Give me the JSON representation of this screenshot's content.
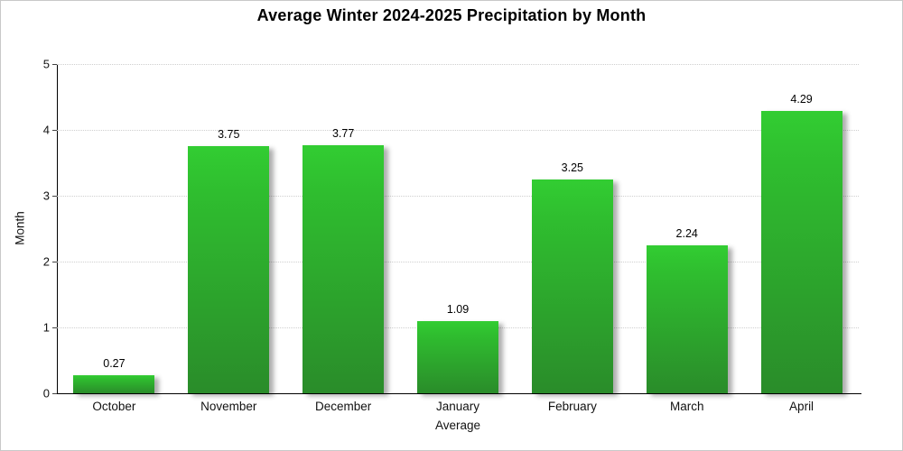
{
  "window": {
    "background": "#ffffff",
    "frame_border_color": "#c9c9c9"
  },
  "chart_data": {
    "type": "bar",
    "title": "Average Winter 2024-2025 Precipitation by Month",
    "xlabel": "Average",
    "ylabel": "Month",
    "categories": [
      "October",
      "November",
      "December",
      "January",
      "February",
      "March",
      "April"
    ],
    "values": [
      0.27,
      3.75,
      3.77,
      1.09,
      3.25,
      2.24,
      4.29
    ],
    "value_labels": [
      "0.27",
      "3.75",
      "3.77",
      "1.09",
      "3.25",
      "2.24",
      "4.29"
    ],
    "ylim": [
      0,
      5
    ],
    "yticks": [
      0,
      1,
      2,
      3,
      4,
      5
    ],
    "grid": "horizontal-dotted",
    "legend_position": "none",
    "colors": {
      "bar_gradient_top": "#32cd32",
      "bar_gradient_bottom": "#2a8c2a",
      "grid_line": "#cfcfcf",
      "axis_line": "#000000",
      "text": "#000000"
    }
  }
}
